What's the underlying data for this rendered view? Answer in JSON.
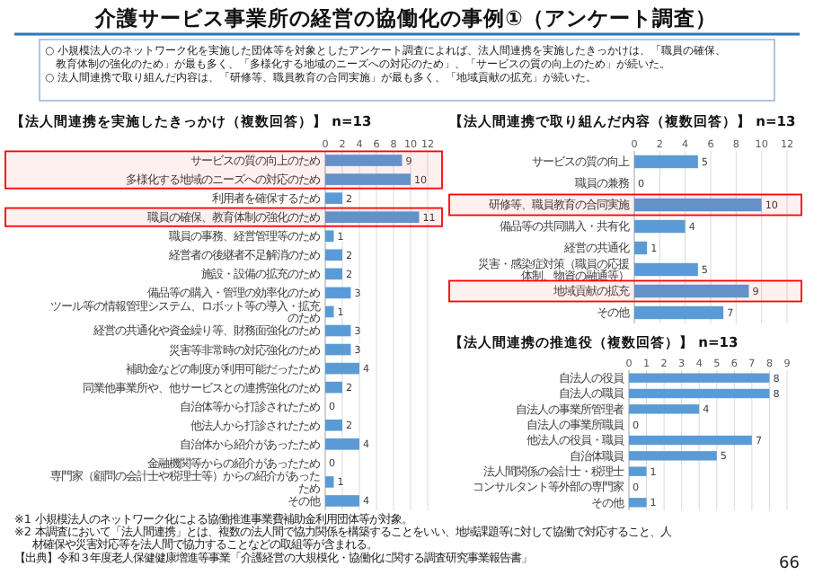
{
  "chart_data": [
    {
      "type": "other",
      "title": "介護サービス事業所の経営の協働化の事例①（アンケート調査）",
      "annotations": [
        "○ 小規模法人のネットワーク化を実施した団体等を対象としたアンケート調査によれば、法人間連携を実施したきっかけは、「職員の確保、教育体制の強化のため」が最も多く、「多様化する地域のニーズへの対応のため」、「サービスの質の向上のため」が続いた。",
        "○ 法人間連携で取り組んだ内容は、「研修等、職員教育の合同実施」が最も多く、「地域貢献の拡充」が続いた。",
        "※1 小規模法人のネットワーク化による協働推進事業費補助金利用団体等が対象。",
        "※2 本調査において「法人間連携」とは、複数の法人間で協力関係を構築することをいい、地域課題等に対して協働で対応すること、人材確保や災害対応等を法人間で協力することなどの取組等が含まれる。",
        "【出典】令和３年度老人保健健康増進等事業「介護経営の大規模化・協働化に関する調査研究事業報告書」",
        "66"
      ]
    },
    {
      "type": "bar",
      "orientation": "horizontal",
      "title": "【法人間連携を実施したきっかけ（複数回答）】 n=13",
      "categories": [
        "サービスの質の向上のため",
        "多様化する地域のニーズへの対応のため",
        "利用者を確保するため",
        "職員の確保、教育体制の強化のため",
        "職員の事務、経営管理等のため",
        "経営者の後継者不足解消のため",
        "施設・設備の拡充のため",
        "備品等の購入・管理の効率化のため",
        "ツール等の情報管理システム、ロボット等の導入・拡充のため",
        "経営の共通化や資金繰り等、財務面強化のため",
        "災害等非常時の対応強化のため",
        "補助金などの制度が利用可能だったため",
        "同業他事業所や、他サービスとの連携強化のため",
        "自治体等から打診されたため",
        "他法人から打診されたため",
        "自治体から紹介があったため",
        "金融機関等からの紹介があったため",
        "専門家（顧問の会計士や税理士等）からの紹介があったため",
        "その他"
      ],
      "values": [
        9,
        10,
        2,
        11,
        1,
        2,
        2,
        3,
        1,
        3,
        3,
        4,
        2,
        0,
        2,
        4,
        0,
        1,
        4
      ],
      "color": "#5b9bd5",
      "xlim": [
        0,
        12
      ],
      "xticks": [
        0,
        2,
        4,
        6,
        8,
        10,
        12
      ],
      "grid": "x",
      "data_labels": true,
      "bands": [
        {
          "axis": "y",
          "from": "サービスの質の向上のため",
          "to": "多様化する地域のニーズへの対応のため",
          "color": "#ff0000"
        },
        {
          "axis": "y",
          "from": "職員の確保、教育体制の強化のため",
          "to": "職員の確保、教育体制の強化のため",
          "color": "#ff0000"
        }
      ]
    },
    {
      "type": "bar",
      "orientation": "horizontal",
      "title": "【法人間連携で取り組んだ内容（複数回答）】 n=13",
      "categories": [
        "サービスの質の向上",
        "職員の兼務",
        "研修等、職員教育の合同実施",
        "備品等の共同購入・共有化",
        "経営の共通化",
        "災害・感染症対策（職員の応援体制、物資の融通等）",
        "地域貢献の拡充",
        "その他"
      ],
      "values": [
        5,
        0,
        10,
        4,
        1,
        5,
        9,
        7
      ],
      "color": "#5b9bd5",
      "xlim": [
        0,
        12
      ],
      "xticks": [
        0,
        2,
        4,
        6,
        8,
        10,
        12
      ],
      "grid": "x",
      "data_labels": true,
      "bands": [
        {
          "axis": "y",
          "from": "研修等、職員教育の合同実施",
          "to": "研修等、職員教育の合同実施",
          "color": "#ff0000"
        },
        {
          "axis": "y",
          "from": "地域貢献の拡充",
          "to": "地域貢献の拡充",
          "color": "#ff0000"
        }
      ]
    },
    {
      "type": "bar",
      "orientation": "horizontal",
      "title": "【法人間連携の推進役（複数回答）】 n=13",
      "categories": [
        "自法人の役員",
        "自法人の職員",
        "自法人の事業所管理者",
        "自法人の事業所職員",
        "他法人の役員・職員",
        "自治体職員",
        "法人間関係の会計士・税理士",
        "コンサルタント等外部の専門家",
        "その他"
      ],
      "values": [
        8,
        8,
        4,
        0,
        7,
        5,
        1,
        0,
        1
      ],
      "color": "#5b9bd5",
      "xlim": [
        0,
        9
      ],
      "xticks": [
        0,
        1,
        2,
        3,
        4,
        5,
        6,
        7,
        8,
        9
      ],
      "grid": "x",
      "data_labels": true
    }
  ]
}
